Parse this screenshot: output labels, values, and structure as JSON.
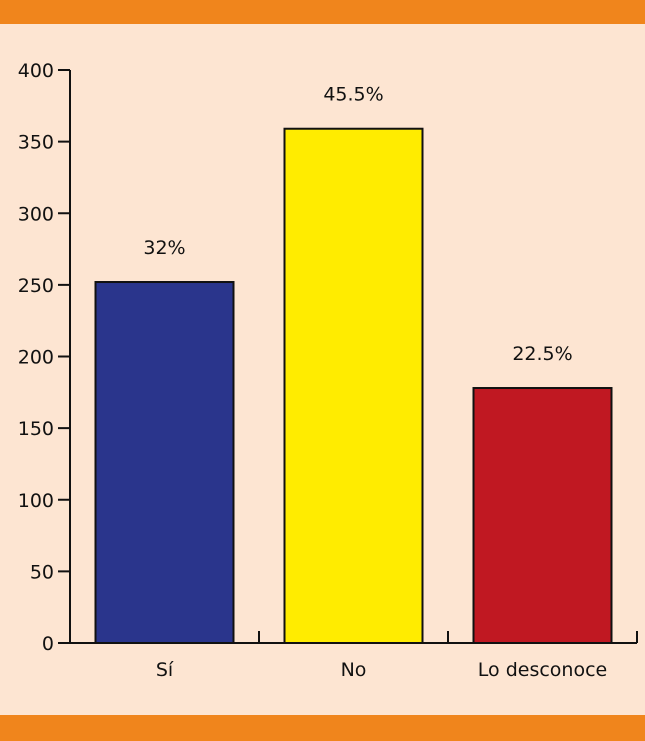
{
  "chart_data": {
    "type": "bar",
    "categories": [
      "Sí",
      "No",
      "Lo desconoce"
    ],
    "values": [
      252,
      359,
      178
    ],
    "data_labels": [
      "32%",
      "45.5%",
      "22.5%"
    ],
    "colors": [
      "#2a358c",
      "#ffec00",
      "#c01822"
    ],
    "ylim": [
      0,
      400
    ],
    "yticks": [
      0,
      50,
      100,
      150,
      200,
      250,
      300,
      350,
      400
    ],
    "grid": false,
    "title": "",
    "xlabel": "",
    "ylabel": ""
  },
  "colors": {
    "background": "#fde5d2",
    "band": "#f0851c"
  }
}
